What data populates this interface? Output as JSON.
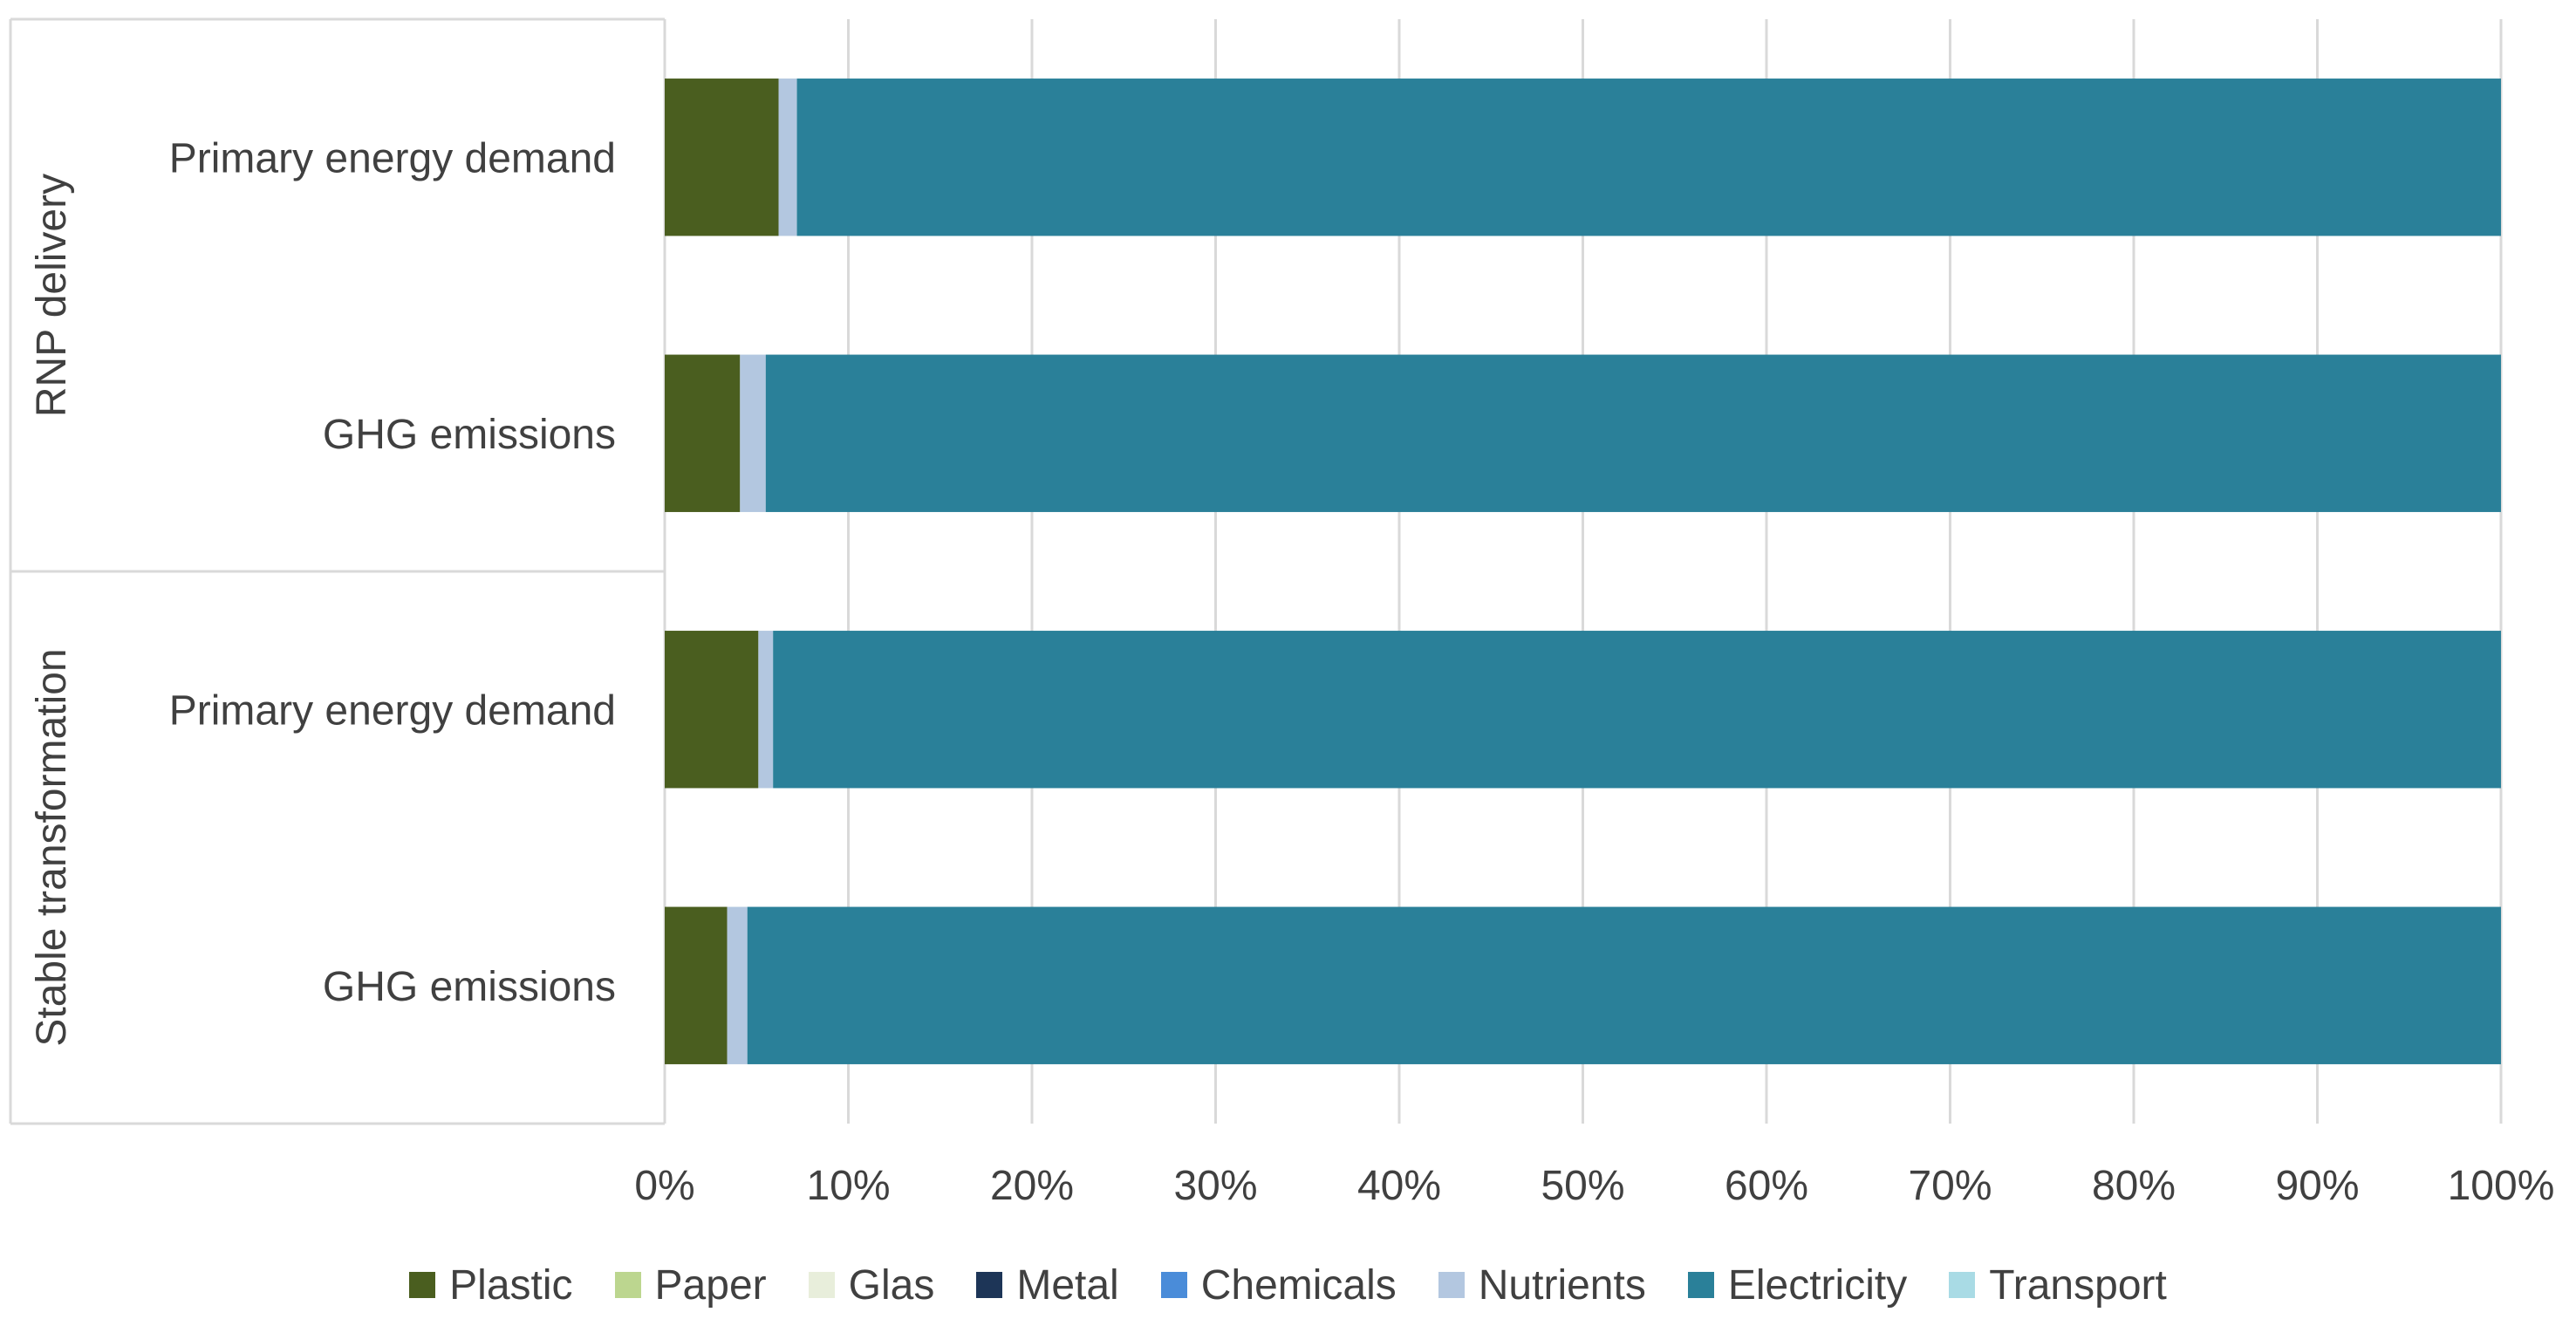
{
  "chart_data": {
    "type": "bar",
    "orientation": "horizontal",
    "stacked": "percent",
    "groups": [
      {
        "name": "RNP delivery",
        "categories": [
          "Primary energy demand",
          "GHG emissions"
        ]
      },
      {
        "name": "Stable transformation",
        "categories": [
          "Primary energy demand",
          "GHG emissions"
        ]
      }
    ],
    "categories": [
      "Primary energy demand",
      "GHG emissions",
      "Primary energy demand",
      "GHG emissions"
    ],
    "series": [
      {
        "name": "Plastic",
        "color": "#4a5e1f",
        "values": [
          6.2,
          4.1,
          5.1,
          3.4
        ]
      },
      {
        "name": "Paper",
        "color": "#bcd68f",
        "values": [
          0,
          0,
          0,
          0
        ]
      },
      {
        "name": "Glas",
        "color": "#e8eedb",
        "values": [
          0,
          0,
          0,
          0
        ]
      },
      {
        "name": "Metal",
        "color": "#1d3557",
        "values": [
          0,
          0,
          0,
          0
        ]
      },
      {
        "name": "Chemicals",
        "color": "#4a8cd9",
        "values": [
          0,
          0,
          0,
          0
        ]
      },
      {
        "name": "Nutrients",
        "color": "#b3c7e0",
        "values": [
          1.0,
          1.4,
          0.8,
          1.1
        ]
      },
      {
        "name": "Electricity",
        "color": "#2a8099",
        "values": [
          92.8,
          94.5,
          94.1,
          95.5
        ]
      },
      {
        "name": "Transport",
        "color": "#a9dbe5",
        "values": [
          0,
          0,
          0,
          0
        ]
      }
    ],
    "x_ticks": [
      "0%",
      "10%",
      "20%",
      "30%",
      "40%",
      "50%",
      "60%",
      "70%",
      "80%",
      "90%",
      "100%"
    ],
    "xlim": [
      0,
      100
    ],
    "grid": "vertical",
    "legend": "bottom"
  }
}
